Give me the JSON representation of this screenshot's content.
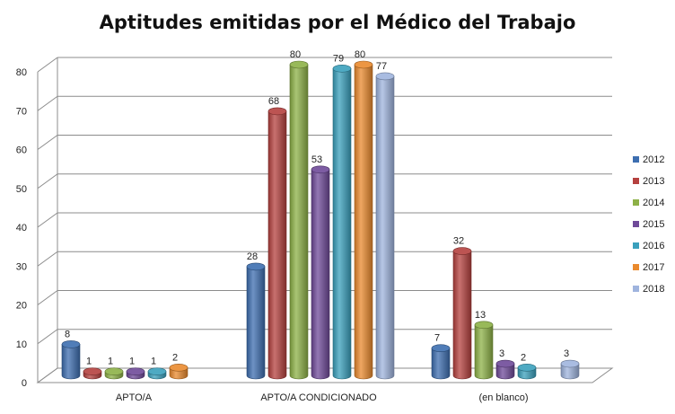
{
  "chart_data": {
    "type": "bar",
    "title": "Aptitudes emitidas por el Médico del Trabajo",
    "xlabel": "",
    "ylabel": "",
    "ylim": [
      0,
      80
    ],
    "yticks": [
      0,
      10,
      20,
      30,
      40,
      50,
      60,
      70,
      80
    ],
    "grid": true,
    "legend_position": "right",
    "categories": [
      "APTO/A",
      "APTO/A CONDICIONADO",
      "(en blanco)"
    ],
    "series": [
      {
        "name": "2012",
        "color": "#3d6eb0",
        "values": [
          8,
          28,
          7
        ]
      },
      {
        "name": "2013",
        "color": "#b5413f",
        "values": [
          1,
          68,
          32
        ]
      },
      {
        "name": "2014",
        "color": "#8db147",
        "values": [
          1,
          80,
          13
        ]
      },
      {
        "name": "2015",
        "color": "#6f4a99",
        "values": [
          1,
          53,
          3
        ]
      },
      {
        "name": "2016",
        "color": "#3aa0bc",
        "values": [
          1,
          79,
          2
        ]
      },
      {
        "name": "2017",
        "color": "#ea8a2e",
        "values": [
          2,
          80,
          null
        ]
      },
      {
        "name": "2018",
        "color": "#9fb4de",
        "values": [
          null,
          77,
          3
        ]
      }
    ]
  }
}
